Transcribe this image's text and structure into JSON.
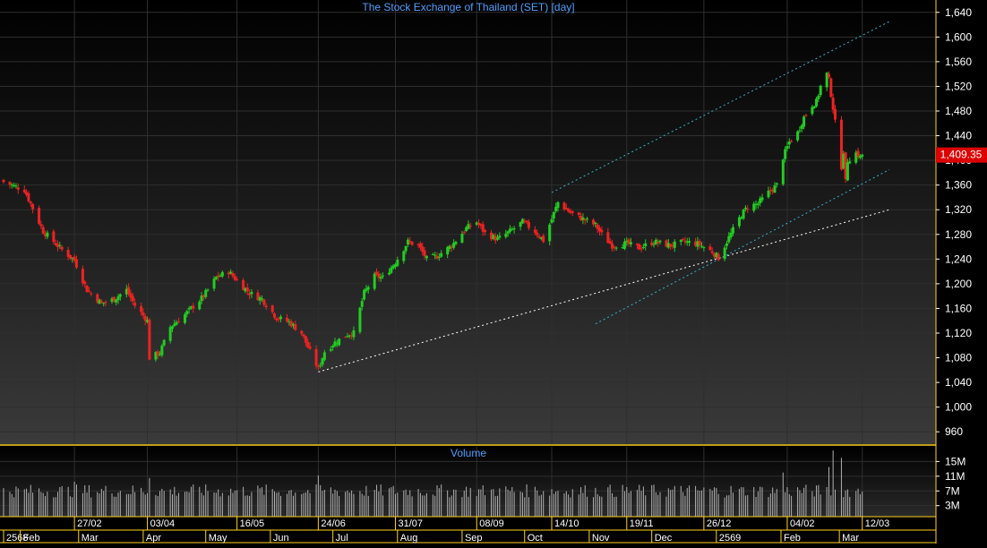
{
  "colors": {
    "background": "#000000",
    "grid": "#2f2f2f",
    "title_text": "#4fa0ff",
    "axis_text": "#ffffff",
    "up_candle": "#22cc22",
    "down_candle": "#ee2222",
    "volume_bar": "#b0b0b0",
    "channel_line": "#33b5c8",
    "support_line": "#ffffff",
    "frame": "#ffd21e",
    "price_tag": "#dd0000"
  },
  "chart_data": {
    "type": "candlestick",
    "title": "The Stock Exchange of Thailand (SET) [day]",
    "grid": true,
    "price_axis": {
      "side": "right",
      "ylim": [
        940,
        1660
      ],
      "ticks": [
        960,
        1000,
        1040,
        1080,
        1120,
        1160,
        1200,
        1240,
        1280,
        1320,
        1360,
        1400,
        1440,
        1480,
        1520,
        1560,
        1600,
        1640
      ],
      "tick_labels": [
        "960",
        "1,000",
        "1,040",
        "1,080",
        "1,120",
        "1,160",
        "1,200",
        "1,240",
        "1,280",
        "1,320",
        "1,360",
        "1,400",
        "1,440",
        "1,480",
        "1,520",
        "1,560",
        "1,600",
        "1,640"
      ]
    },
    "last_price": {
      "value": 1409.35,
      "label": "1,409.35"
    },
    "start_date": "2025-01-24",
    "keypoints": [
      {
        "date": "2025-01-24",
        "close": 1365
      },
      {
        "date": "2025-02-03",
        "close": 1352
      },
      {
        "date": "2025-02-12",
        "close": 1285
      },
      {
        "date": "2025-02-21",
        "close": 1255
      },
      {
        "date": "2025-02-27",
        "close": 1238
      },
      {
        "date": "2025-03-05",
        "close": 1190
      },
      {
        "date": "2025-03-12",
        "close": 1168
      },
      {
        "date": "2025-03-18",
        "close": 1175
      },
      {
        "date": "2025-03-24",
        "close": 1190
      },
      {
        "date": "2025-03-28",
        "close": 1165
      },
      {
        "date": "2025-04-03",
        "close": 1140
      },
      {
        "date": "2025-04-04",
        "close": 1080
      },
      {
        "date": "2025-04-09",
        "close": 1088
      },
      {
        "date": "2025-04-14",
        "close": 1130
      },
      {
        "date": "2025-04-21",
        "close": 1150
      },
      {
        "date": "2025-04-30",
        "close": 1180
      },
      {
        "date": "2025-05-06",
        "close": 1210
      },
      {
        "date": "2025-05-12",
        "close": 1220
      },
      {
        "date": "2025-05-16",
        "close": 1205
      },
      {
        "date": "2025-05-22",
        "close": 1185
      },
      {
        "date": "2025-05-28",
        "close": 1175
      },
      {
        "date": "2025-06-04",
        "close": 1145
      },
      {
        "date": "2025-06-10",
        "close": 1138
      },
      {
        "date": "2025-06-16",
        "close": 1120
      },
      {
        "date": "2025-06-20",
        "close": 1090
      },
      {
        "date": "2025-06-24",
        "close": 1062
      },
      {
        "date": "2025-06-27",
        "close": 1090
      },
      {
        "date": "2025-07-02",
        "close": 1105
      },
      {
        "date": "2025-07-08",
        "close": 1118
      },
      {
        "date": "2025-07-11",
        "close": 1120
      },
      {
        "date": "2025-07-16",
        "close": 1185
      },
      {
        "date": "2025-07-21",
        "close": 1212
      },
      {
        "date": "2025-07-25",
        "close": 1210
      },
      {
        "date": "2025-07-31",
        "close": 1235
      },
      {
        "date": "2025-08-06",
        "close": 1268
      },
      {
        "date": "2025-08-11",
        "close": 1262
      },
      {
        "date": "2025-08-15",
        "close": 1240
      },
      {
        "date": "2025-08-20",
        "close": 1245
      },
      {
        "date": "2025-08-27",
        "close": 1262
      },
      {
        "date": "2025-09-03",
        "close": 1290
      },
      {
        "date": "2025-09-08",
        "close": 1300
      },
      {
        "date": "2025-09-12",
        "close": 1282
      },
      {
        "date": "2025-09-18",
        "close": 1272
      },
      {
        "date": "2025-09-24",
        "close": 1285
      },
      {
        "date": "2025-09-30",
        "close": 1300
      },
      {
        "date": "2025-10-06",
        "close": 1285
      },
      {
        "date": "2025-10-10",
        "close": 1270
      },
      {
        "date": "2025-10-14",
        "close": 1305
      },
      {
        "date": "2025-10-17",
        "close": 1332
      },
      {
        "date": "2025-10-23",
        "close": 1315
      },
      {
        "date": "2025-10-29",
        "close": 1305
      },
      {
        "date": "2025-11-04",
        "close": 1295
      },
      {
        "date": "2025-11-07",
        "close": 1280
      },
      {
        "date": "2025-11-12",
        "close": 1262
      },
      {
        "date": "2025-11-19",
        "close": 1265
      },
      {
        "date": "2025-11-25",
        "close": 1258
      },
      {
        "date": "2025-12-02",
        "close": 1268
      },
      {
        "date": "2025-12-10",
        "close": 1262
      },
      {
        "date": "2025-12-17",
        "close": 1268
      },
      {
        "date": "2025-12-23",
        "close": 1265
      },
      {
        "date": "2025-12-30",
        "close": 1252
      },
      {
        "date": "2026-01-02",
        "close": 1242
      },
      {
        "date": "2026-01-07",
        "close": 1275
      },
      {
        "date": "2026-01-13",
        "close": 1312
      },
      {
        "date": "2026-01-16",
        "close": 1325
      },
      {
        "date": "2026-01-21",
        "close": 1330
      },
      {
        "date": "2026-01-26",
        "close": 1348
      },
      {
        "date": "2026-01-30",
        "close": 1360
      },
      {
        "date": "2026-02-02",
        "close": 1405
      },
      {
        "date": "2026-02-05",
        "close": 1430
      },
      {
        "date": "2026-02-09",
        "close": 1445
      },
      {
        "date": "2026-02-12",
        "close": 1470
      },
      {
        "date": "2026-02-16",
        "close": 1490
      },
      {
        "date": "2026-02-18",
        "close": 1495
      },
      {
        "date": "2026-02-20",
        "close": 1520
      },
      {
        "date": "2026-02-23",
        "close": 1540
      },
      {
        "date": "2026-02-24",
        "close": 1530
      },
      {
        "date": "2026-02-26",
        "close": 1485
      },
      {
        "date": "2026-03-02",
        "close": 1390
      },
      {
        "date": "2026-03-03",
        "close": 1415
      },
      {
        "date": "2026-03-04",
        "close": 1365
      },
      {
        "date": "2026-03-05",
        "close": 1400
      },
      {
        "date": "2026-03-09",
        "close": 1412
      },
      {
        "date": "2026-03-11",
        "close": 1405
      },
      {
        "date": "2026-03-12",
        "close": 1409.35
      }
    ],
    "trendlines": [
      {
        "name": "channel-upper",
        "style": "dotted",
        "color": "#33b5c8",
        "points": [
          {
            "date": "2025-10-14",
            "value": 1348
          },
          {
            "date": "2026-03-25",
            "value": 1625
          }
        ]
      },
      {
        "name": "channel-lower",
        "style": "dotted",
        "color": "#33b5c8",
        "points": [
          {
            "date": "2025-11-04",
            "value": 1135
          },
          {
            "date": "2026-03-25",
            "value": 1385
          }
        ]
      },
      {
        "name": "long-support",
        "style": "dotted",
        "color": "#ffffff",
        "points": [
          {
            "date": "2025-06-24",
            "value": 1057
          },
          {
            "date": "2026-03-25",
            "value": 1320
          }
        ]
      }
    ],
    "volume": {
      "label": "Volume",
      "tick_labels": [
        "15M",
        "11M",
        "7M",
        "3M"
      ],
      "ticks": [
        15,
        11,
        7,
        3
      ],
      "ylim": [
        0,
        19
      ],
      "unit": "M",
      "spikes": [
        {
          "date": "2025-02-27",
          "value": 9.5
        },
        {
          "date": "2025-04-04",
          "value": 10.5
        },
        {
          "date": "2025-06-24",
          "value": 11.2
        },
        {
          "date": "2026-02-02",
          "value": 12.0
        },
        {
          "date": "2026-02-24",
          "value": 13.5
        },
        {
          "date": "2026-02-26",
          "value": 18.0
        },
        {
          "date": "2026-03-02",
          "value": 16.0
        }
      ]
    },
    "date_labels": [
      {
        "date": "2025-02-27",
        "label": "27/02"
      },
      {
        "date": "2025-04-03",
        "label": "03/04"
      },
      {
        "date": "2025-05-16",
        "label": "16/05"
      },
      {
        "date": "2025-06-24",
        "label": "24/06"
      },
      {
        "date": "2025-07-31",
        "label": "31/07"
      },
      {
        "date": "2025-09-08",
        "label": "08/09"
      },
      {
        "date": "2025-10-14",
        "label": "14/10"
      },
      {
        "date": "2025-11-19",
        "label": "19/11"
      },
      {
        "date": "2025-12-26",
        "label": "26/12"
      },
      {
        "date": "2026-02-04",
        "label": "04/02"
      },
      {
        "date": "2026-03-12",
        "label": "12/03"
      }
    ],
    "month_labels": [
      {
        "date": "2025-01-24",
        "label": "2568"
      },
      {
        "date": "2025-02-01",
        "label": "Feb"
      },
      {
        "date": "2025-03-01",
        "label": "Mar"
      },
      {
        "date": "2025-04-01",
        "label": "Apr"
      },
      {
        "date": "2025-05-01",
        "label": "May"
      },
      {
        "date": "2025-06-01",
        "label": "Jun"
      },
      {
        "date": "2025-07-01",
        "label": "Jul"
      },
      {
        "date": "2025-08-01",
        "label": "Aug"
      },
      {
        "date": "2025-09-01",
        "label": "Sep"
      },
      {
        "date": "2025-10-01",
        "label": "Oct"
      },
      {
        "date": "2025-11-01",
        "label": "Nov"
      },
      {
        "date": "2025-12-01",
        "label": "Dec"
      },
      {
        "date": "2026-01-01",
        "label": "2569"
      },
      {
        "date": "2026-02-01",
        "label": "Feb"
      },
      {
        "date": "2026-03-01",
        "label": "Mar"
      }
    ]
  }
}
